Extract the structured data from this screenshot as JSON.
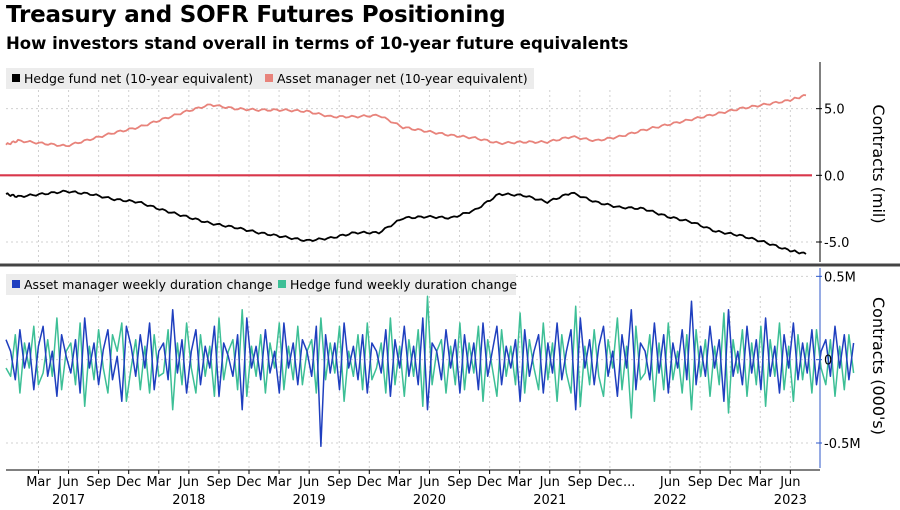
{
  "header": {
    "title": "Treasury and SOFR Futures Positioning",
    "subtitle": "How investors stand overall in terms of 10-year future equivalents"
  },
  "colors": {
    "hedge_net": "#000000",
    "asset_net": "#e8837b",
    "asset_weekly": "#1f3fbf",
    "hedge_weekly": "#3dbf96",
    "zero_line": "#d9374b",
    "divider": "#444444",
    "lower_axis": "#2c57c9",
    "grid": "#d0d0d0"
  },
  "chart_data": [
    {
      "type": "line",
      "ylabel": "Contracts (mil)",
      "ylim": [
        -6.5,
        8.5
      ],
      "yticks": [
        {
          "value": 5,
          "label": "5.0"
        },
        {
          "value": 0,
          "label": "0.0"
        },
        {
          "value": -5,
          "label": "-5.0"
        }
      ],
      "legend_placement": "top-left",
      "series": [
        {
          "name": "Hedge fund net (10-year equivalent)",
          "x": [
            2016.9,
            2017.0,
            2017.2,
            2017.4,
            2017.6,
            2017.8,
            2018.0,
            2018.2,
            2018.4,
            2018.6,
            2018.8,
            2019.0,
            2019.2,
            2019.4,
            2019.6,
            2019.8,
            2020.0,
            2020.2,
            2020.4,
            2020.6,
            2020.8,
            2021.0,
            2021.2,
            2021.4,
            2021.6,
            2021.8,
            2022.0,
            2022.2,
            2022.4,
            2022.6,
            2022.8,
            2023.0,
            2023.2,
            2023.4,
            2023.55
          ],
          "values": [
            -1.4,
            -1.6,
            -1.4,
            -1.2,
            -1.4,
            -1.8,
            -2.0,
            -2.6,
            -3.1,
            -3.6,
            -3.9,
            -4.3,
            -4.6,
            -4.9,
            -4.7,
            -4.3,
            -4.3,
            -3.2,
            -3.1,
            -3.2,
            -2.6,
            -1.4,
            -1.5,
            -2.0,
            -1.3,
            -2.0,
            -2.4,
            -2.5,
            -3.1,
            -3.5,
            -4.2,
            -4.5,
            -5.0,
            -5.6,
            -5.9
          ]
        },
        {
          "name": "Asset manager net (10-year equivalent)",
          "x": [
            2016.9,
            2017.0,
            2017.2,
            2017.4,
            2017.6,
            2017.8,
            2018.0,
            2018.2,
            2018.4,
            2018.6,
            2018.8,
            2019.0,
            2019.2,
            2019.4,
            2019.6,
            2019.8,
            2020.0,
            2020.2,
            2020.4,
            2020.6,
            2020.8,
            2021.0,
            2021.2,
            2021.4,
            2021.6,
            2021.8,
            2022.0,
            2022.2,
            2022.4,
            2022.6,
            2022.8,
            2023.0,
            2023.2,
            2023.4,
            2023.55
          ],
          "values": [
            2.3,
            2.6,
            2.4,
            2.2,
            2.7,
            3.2,
            3.6,
            4.2,
            4.8,
            5.3,
            5.0,
            4.9,
            4.9,
            4.8,
            4.4,
            4.4,
            4.5,
            3.6,
            3.3,
            3.0,
            2.8,
            2.4,
            2.5,
            2.5,
            2.9,
            2.6,
            2.9,
            3.4,
            3.8,
            4.2,
            4.6,
            5.0,
            5.3,
            5.6,
            6.0
          ]
        }
      ],
      "reference_line": 0
    },
    {
      "type": "line",
      "ylabel": "Contracts (000's)",
      "ylim": [
        -0.65,
        0.55
      ],
      "yticks": [
        {
          "value": 0.5,
          "label": "0.5M"
        },
        {
          "value": 0,
          "label": "0"
        },
        {
          "value": -0.5,
          "label": "-0.5M"
        }
      ],
      "legend_placement": "top-left",
      "series": [
        {
          "name": "Asset manager weekly duration change",
          "x_start": 2016.9,
          "x_step": 0.0385,
          "values": [
            0.12,
            0.05,
            -0.12,
            0.18,
            -0.05,
            0.1,
            -0.18,
            0.08,
            0.2,
            -0.1,
            0.05,
            -0.22,
            0.15,
            0.02,
            -0.08,
            0.12,
            -0.2,
            0.25,
            -0.05,
            0.1,
            -0.15,
            0.06,
            0.18,
            -0.12,
            0.02,
            -0.25,
            0.2,
            0.08,
            -0.1,
            0.15,
            -0.05,
            0.22,
            -0.18,
            0.05,
            0.1,
            -0.12,
            0.3,
            -0.08,
            0.12,
            -0.2,
            0.05,
            0.18,
            -0.15,
            0.08,
            -0.05,
            0.2,
            -0.22,
            0.1,
            0.02,
            -0.1,
            0.15,
            -0.3,
            0.25,
            -0.05,
            0.08,
            -0.12,
            0.18,
            -0.08,
            0.05,
            -0.2,
            0.22,
            -0.05,
            0.1,
            -0.15,
            0.12,
            0.05,
            -0.1,
            0.2,
            -0.52,
            0.15,
            -0.08,
            0.1,
            -0.18,
            0.22,
            -0.05,
            0.08,
            -0.12,
            0.15,
            -0.2,
            0.1,
            0.05,
            -0.08,
            0.18,
            -0.22,
            0.12,
            -0.05,
            0.2,
            -0.1,
            0.08,
            -0.15,
            0.25,
            -0.3,
            0.1,
            0.05,
            -0.12,
            0.18,
            -0.05,
            0.12,
            -0.2,
            0.15,
            -0.08,
            0.1,
            -0.18,
            0.22,
            -0.1,
            0.05,
            0.2,
            -0.15,
            0.08,
            -0.05,
            0.12,
            -0.25,
            0.18,
            -0.1,
            0.05,
            0.15,
            -0.2,
            0.1,
            -0.08,
            0.22,
            -0.12,
            0.05,
            0.18,
            -0.3,
            0.25,
            -0.05,
            0.12,
            -0.15,
            0.08,
            0.2,
            -0.1,
            0.05,
            -0.22,
            0.15,
            -0.05,
            0.3,
            -0.18,
            0.1,
            0.05,
            -0.12,
            0.22,
            -0.08,
            0.15,
            -0.2,
            0.1,
            -0.05,
            0.18,
            -0.12,
            0.35,
            -0.15,
            0.08,
            -0.1,
            0.2,
            -0.05,
            0.12,
            -0.25,
            0.3,
            -0.1,
            0.05,
            -0.15,
            0.2,
            -0.08,
            0.12,
            -0.18,
            0.25,
            -0.1,
            0.08,
            -0.2,
            0.15,
            -0.05,
            0.22,
            -0.12,
            0.1,
            -0.08,
            0.18,
            -0.15,
            0.05,
            0.12,
            -0.1,
            0.2,
            -0.05,
            0.15,
            -0.12,
            0.1
          ]
        },
        {
          "name": "Hedge fund weekly duration change",
          "x_start": 2016.9,
          "x_step": 0.0385,
          "values": [
            -0.05,
            -0.1,
            0.15,
            -0.2,
            0.1,
            -0.05,
            0.2,
            -0.15,
            -0.08,
            0.12,
            -0.1,
            0.25,
            -0.18,
            0.05,
            0.1,
            -0.15,
            0.22,
            -0.28,
            0.08,
            -0.12,
            0.18,
            -0.05,
            -0.2,
            0.15,
            0.05,
            0.22,
            -0.25,
            -0.05,
            0.12,
            -0.18,
            0.08,
            -0.2,
            0.15,
            -0.1,
            -0.08,
            0.18,
            -0.3,
            0.1,
            -0.15,
            0.22,
            -0.05,
            -0.2,
            0.15,
            -0.1,
            0.08,
            -0.22,
            0.25,
            -0.12,
            0.05,
            0.12,
            -0.18,
            0.3,
            -0.22,
            0.08,
            -0.1,
            0.15,
            -0.2,
            0.1,
            -0.05,
            0.22,
            -0.18,
            0.08,
            -0.12,
            0.2,
            -0.15,
            0.05,
            0.12,
            -0.2,
            0.25,
            -0.12,
            0.1,
            -0.08,
            0.2,
            -0.25,
            0.05,
            -0.1,
            0.15,
            -0.18,
            0.22,
            -0.12,
            -0.05,
            0.1,
            -0.2,
            0.25,
            -0.15,
            0.08,
            -0.22,
            0.12,
            -0.1,
            0.18,
            -0.28,
            0.38,
            -0.15,
            0.05,
            0.12,
            -0.2,
            0.08,
            -0.15,
            0.22,
            -0.18,
            0.1,
            -0.08,
            0.2,
            -0.25,
            0.12,
            -0.05,
            -0.22,
            0.18,
            -0.1,
            0.08,
            -0.15,
            0.28,
            -0.2,
            0.12,
            -0.05,
            -0.18,
            0.22,
            -0.12,
            0.1,
            -0.25,
            0.15,
            -0.08,
            -0.2,
            0.32,
            -0.28,
            0.08,
            -0.15,
            0.18,
            -0.1,
            -0.22,
            0.12,
            -0.05,
            0.25,
            -0.18,
            0.08,
            -0.35,
            0.2,
            -0.12,
            -0.08,
            0.15,
            -0.25,
            0.1,
            -0.18,
            0.22,
            -0.12,
            0.05,
            -0.2,
            0.15,
            -0.3,
            0.18,
            -0.1,
            0.12,
            -0.22,
            0.08,
            -0.15,
            0.28,
            -0.32,
            0.12,
            -0.08,
            0.18,
            -0.22,
            0.1,
            -0.15,
            0.2,
            -0.28,
            0.12,
            -0.1,
            0.22,
            -0.18,
            0.08,
            -0.25,
            0.15,
            -0.12,
            0.1,
            -0.2,
            0.18,
            -0.05,
            -0.15,
            0.12,
            -0.22,
            0.08,
            -0.18,
            0.15,
            -0.08
          ]
        }
      ],
      "reference_line": 0
    }
  ],
  "x_axis": {
    "xlim": [
      2016.9,
      2023.6
    ],
    "month_ticks": [
      {
        "x": 2017.17,
        "label": "Mar"
      },
      {
        "x": 2017.42,
        "label": "Jun"
      },
      {
        "x": 2017.67,
        "label": "Sep"
      },
      {
        "x": 2017.92,
        "label": "Dec"
      },
      {
        "x": 2018.17,
        "label": "Mar"
      },
      {
        "x": 2018.42,
        "label": "Jun"
      },
      {
        "x": 2018.67,
        "label": "Sep"
      },
      {
        "x": 2018.92,
        "label": "Dec"
      },
      {
        "x": 2019.17,
        "label": "Mar"
      },
      {
        "x": 2019.42,
        "label": "Jun"
      },
      {
        "x": 2019.67,
        "label": "Sep"
      },
      {
        "x": 2019.92,
        "label": "Dec"
      },
      {
        "x": 2020.17,
        "label": "Mar"
      },
      {
        "x": 2020.42,
        "label": "Jun"
      },
      {
        "x": 2020.67,
        "label": "Sep"
      },
      {
        "x": 2020.92,
        "label": "Dec"
      },
      {
        "x": 2021.17,
        "label": "Mar"
      },
      {
        "x": 2021.42,
        "label": "Jun"
      },
      {
        "x": 2021.67,
        "label": "Sep"
      },
      {
        "x": 2021.92,
        "label": "Dec"
      },
      {
        "x": 2022.08,
        "label": "..."
      },
      {
        "x": 2022.42,
        "label": "Jun"
      },
      {
        "x": 2022.67,
        "label": "Sep"
      },
      {
        "x": 2022.92,
        "label": "Dec"
      },
      {
        "x": 2023.17,
        "label": "Mar"
      },
      {
        "x": 2023.42,
        "label": "Jun"
      }
    ],
    "year_ticks": [
      {
        "x": 2017.42,
        "label": "2017"
      },
      {
        "x": 2018.42,
        "label": "2018"
      },
      {
        "x": 2019.42,
        "label": "2019"
      },
      {
        "x": 2020.42,
        "label": "2020"
      },
      {
        "x": 2021.42,
        "label": "2021"
      },
      {
        "x": 2022.42,
        "label": "2022"
      },
      {
        "x": 2023.42,
        "label": "2023"
      }
    ]
  }
}
